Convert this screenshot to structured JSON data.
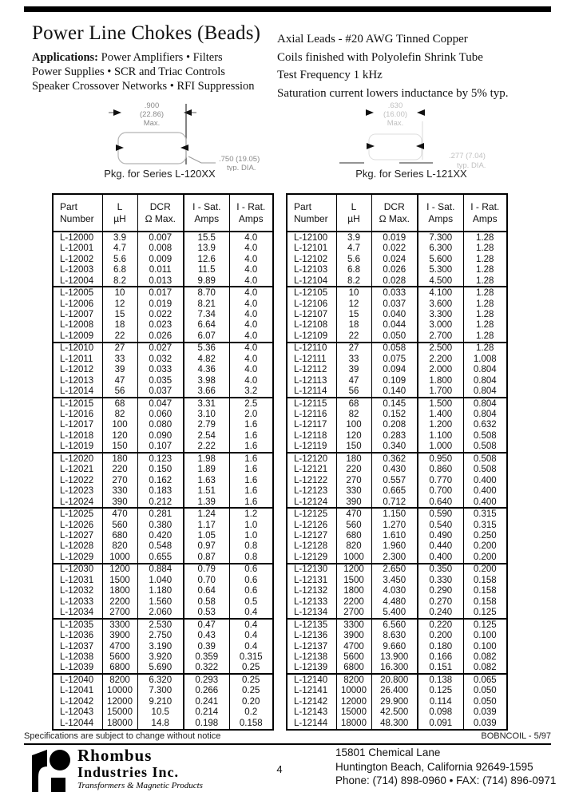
{
  "header": {
    "title": "Power Line Chokes (Beads)",
    "applications_label": "Applications:",
    "applications_line1": "Power Amplifiers • Filters",
    "applications_line2": "Power Supplies • SCR and Triac Controls",
    "applications_line3": "Speaker Crossover Networks • RFI Suppression",
    "spec1": "Axial Leads - #20 AWG Tinned Copper",
    "spec2": "Coils finished with Polyolefin Shrink Tube",
    "spec3": "Test Frequency 1 kHz",
    "spec4": "Saturation current lowers inductance by 5% typ."
  },
  "diagrams": {
    "left": {
      "dim_top_1": ".900",
      "dim_top_2": "(22.86)",
      "dim_top_3": "Max.",
      "dim_side_1": ".750  (19.05)",
      "dim_side_2": "typ. DIA.",
      "caption": "Pkg. for Series L-120XX"
    },
    "right": {
      "dim_top_1": ".630",
      "dim_top_2": "(16.00)",
      "dim_top_3": "Max.",
      "dim_side_1": ".277  (7.04)",
      "dim_side_2": "typ. DIA.",
      "caption": "Pkg. for Series L-121XX"
    }
  },
  "tables": {
    "headers": [
      [
        "Part",
        "Number"
      ],
      [
        "L",
        "µH"
      ],
      [
        "DCR",
        "Ω Max."
      ],
      [
        "I - Sat.",
        "Amps"
      ],
      [
        "I - Rat.",
        "Amps"
      ]
    ],
    "left_rows": [
      [
        "L-12000",
        "3.9",
        "0.007",
        "15.5",
        "4.0"
      ],
      [
        "L-12001",
        "4.7",
        "0.008",
        "13.9",
        "4.0"
      ],
      [
        "L-12002",
        "5.6",
        "0.009",
        "12.6",
        "4.0"
      ],
      [
        "L-12003",
        "6.8",
        "0.011",
        "11.5",
        "4.0"
      ],
      [
        "L-12004",
        "8.2",
        "0.013",
        "9.89",
        "4.0"
      ],
      [
        "L-12005",
        "10",
        "0.017",
        "8.70",
        "4.0"
      ],
      [
        "L-12006",
        "12",
        "0.019",
        "8.21",
        "4.0"
      ],
      [
        "L-12007",
        "15",
        "0.022",
        "7.34",
        "4.0"
      ],
      [
        "L-12008",
        "18",
        "0.023",
        "6.64",
        "4.0"
      ],
      [
        "L-12009",
        "22",
        "0.026",
        "6.07",
        "4.0"
      ],
      [
        "L-12010",
        "27",
        "0.027",
        "5.36",
        "4.0"
      ],
      [
        "L-12011",
        "33",
        "0.032",
        "4.82",
        "4.0"
      ],
      [
        "L-12012",
        "39",
        "0.033",
        "4.36",
        "4.0"
      ],
      [
        "L-12013",
        "47",
        "0.035",
        "3.98",
        "4.0"
      ],
      [
        "L-12014",
        "56",
        "0.037",
        "3.66",
        "3.2"
      ],
      [
        "L-12015",
        "68",
        "0.047",
        "3.31",
        "2.5"
      ],
      [
        "L-12016",
        "82",
        "0.060",
        "3.10",
        "2.0"
      ],
      [
        "L-12017",
        "100",
        "0.080",
        "2.79",
        "1.6"
      ],
      [
        "L-12018",
        "120",
        "0.090",
        "2.54",
        "1.6"
      ],
      [
        "L-12019",
        "150",
        "0.107",
        "2.22",
        "1.6"
      ],
      [
        "L-12020",
        "180",
        "0.123",
        "1.98",
        "1.6"
      ],
      [
        "L-12021",
        "220",
        "0.150",
        "1.89",
        "1.6"
      ],
      [
        "L-12022",
        "270",
        "0.162",
        "1.63",
        "1.6"
      ],
      [
        "L-12023",
        "330",
        "0.183",
        "1.51",
        "1.6"
      ],
      [
        "L-12024",
        "390",
        "0.212",
        "1.39",
        "1.6"
      ],
      [
        "L-12025",
        "470",
        "0.281",
        "1.24",
        "1.2"
      ],
      [
        "L-12026",
        "560",
        "0.380",
        "1.17",
        "1.0"
      ],
      [
        "L-12027",
        "680",
        "0.420",
        "1.05",
        "1.0"
      ],
      [
        "L-12028",
        "820",
        "0.548",
        "0.97",
        "0.8"
      ],
      [
        "L-12029",
        "1000",
        "0.655",
        "0.87",
        "0.8"
      ],
      [
        "L-12030",
        "1200",
        "0.884",
        "0.79",
        "0.6"
      ],
      [
        "L-12031",
        "1500",
        "1.040",
        "0.70",
        "0.6"
      ],
      [
        "L-12032",
        "1800",
        "1.180",
        "0.64",
        "0.6"
      ],
      [
        "L-12033",
        "2200",
        "1.560",
        "0.58",
        "0.5"
      ],
      [
        "L-12034",
        "2700",
        "2.060",
        "0.53",
        "0.4"
      ],
      [
        "L-12035",
        "3300",
        "2.530",
        "0.47",
        "0.4"
      ],
      [
        "L-12036",
        "3900",
        "2.750",
        "0.43",
        "0.4"
      ],
      [
        "L-12037",
        "4700",
        "3.190",
        "0.39",
        "0.4"
      ],
      [
        "L-12038",
        "5600",
        "3.920",
        "0.359",
        "0.315"
      ],
      [
        "L-12039",
        "6800",
        "5.690",
        "0.322",
        "0.25"
      ],
      [
        "L-12040",
        "8200",
        "6.320",
        "0.293",
        "0.25"
      ],
      [
        "L-12041",
        "10000",
        "7.300",
        "0.266",
        "0.25"
      ],
      [
        "L-12042",
        "12000",
        "9.210",
        "0.241",
        "0.20"
      ],
      [
        "L-12043",
        "15000",
        "10.5",
        "0.214",
        "0.2"
      ],
      [
        "L-12044",
        "18000",
        "14.8",
        "0.198",
        "0.158"
      ]
    ],
    "right_rows": [
      [
        "L-12100",
        "3.9",
        "0.019",
        "7.300",
        "1.28"
      ],
      [
        "L-12101",
        "4.7",
        "0.022",
        "6.300",
        "1.28"
      ],
      [
        "L-12102",
        "5.6",
        "0.024",
        "5.600",
        "1.28"
      ],
      [
        "L-12103",
        "6.8",
        "0.026",
        "5.300",
        "1.28"
      ],
      [
        "L-12104",
        "8.2",
        "0.028",
        "4.500",
        "1.28"
      ],
      [
        "L-12105",
        "10",
        "0.033",
        "4.100",
        "1.28"
      ],
      [
        "L-12106",
        "12",
        "0.037",
        "3.600",
        "1.28"
      ],
      [
        "L-12107",
        "15",
        "0.040",
        "3.300",
        "1.28"
      ],
      [
        "L-12108",
        "18",
        "0.044",
        "3.000",
        "1.28"
      ],
      [
        "L-12109",
        "22",
        "0.050",
        "2.700",
        "1.28"
      ],
      [
        "L-12110",
        "27",
        "0.058",
        "2.500",
        "1.28"
      ],
      [
        "L-12111",
        "33",
        "0.075",
        "2.200",
        "1.008"
      ],
      [
        "L-12112",
        "39",
        "0.094",
        "2.000",
        "0.804"
      ],
      [
        "L-12113",
        "47",
        "0.109",
        "1.800",
        "0.804"
      ],
      [
        "L-12114",
        "56",
        "0.140",
        "1.700",
        "0.804"
      ],
      [
        "L-12115",
        "68",
        "0.145",
        "1.500",
        "0.804"
      ],
      [
        "L-12116",
        "82",
        "0.152",
        "1.400",
        "0.804"
      ],
      [
        "L-12117",
        "100",
        "0.208",
        "1.200",
        "0.632"
      ],
      [
        "L-12118",
        "120",
        "0.283",
        "1.100",
        "0.508"
      ],
      [
        "L-12119",
        "150",
        "0.340",
        "1.000",
        "0.508"
      ],
      [
        "L-12120",
        "180",
        "0.362",
        "0.950",
        "0.508"
      ],
      [
        "L-12121",
        "220",
        "0.430",
        "0.860",
        "0.508"
      ],
      [
        "L-12122",
        "270",
        "0.557",
        "0.770",
        "0.400"
      ],
      [
        "L-12123",
        "330",
        "0.665",
        "0.700",
        "0.400"
      ],
      [
        "L-12124",
        "390",
        "0.712",
        "0.640",
        "0.400"
      ],
      [
        "L-12125",
        "470",
        "1.150",
        "0.590",
        "0.315"
      ],
      [
        "L-12126",
        "560",
        "1.270",
        "0.540",
        "0.315"
      ],
      [
        "L-12127",
        "680",
        "1.610",
        "0.490",
        "0.250"
      ],
      [
        "L-12128",
        "820",
        "1.960",
        "0.440",
        "0.200"
      ],
      [
        "L-12129",
        "1000",
        "2.300",
        "0.400",
        "0.200"
      ],
      [
        "L-12130",
        "1200",
        "2.650",
        "0.350",
        "0.200"
      ],
      [
        "L-12131",
        "1500",
        "3.450",
        "0.330",
        "0.158"
      ],
      [
        "L-12132",
        "1800",
        "4.030",
        "0.290",
        "0.158"
      ],
      [
        "L-12133",
        "2200",
        "4.480",
        "0.270",
        "0.158"
      ],
      [
        "L-12134",
        "2700",
        "5.400",
        "0.240",
        "0.125"
      ],
      [
        "L-12135",
        "3300",
        "6.560",
        "0.220",
        "0.125"
      ],
      [
        "L-12136",
        "3900",
        "8.630",
        "0.200",
        "0.100"
      ],
      [
        "L-12137",
        "4700",
        "9.660",
        "0.180",
        "0.100"
      ],
      [
        "L-12138",
        "5600",
        "13.900",
        "0.166",
        "0.082"
      ],
      [
        "L-12139",
        "6800",
        "16.300",
        "0.151",
        "0.082"
      ],
      [
        "L-12140",
        "8200",
        "20.800",
        "0.138",
        "0.065"
      ],
      [
        "L-12141",
        "10000",
        "26.400",
        "0.125",
        "0.050"
      ],
      [
        "L-12142",
        "12000",
        "29.900",
        "0.114",
        "0.050"
      ],
      [
        "L-12143",
        "15000",
        "42.500",
        "0.098",
        "0.039"
      ],
      [
        "L-12144",
        "18000",
        "48.300",
        "0.091",
        "0.039"
      ]
    ]
  },
  "footer": {
    "disclaimer": "Specifications are subject to change without notice",
    "doc_code": "BOBNCOIL - 5/97",
    "company_line1": "Rhombus",
    "company_line2": "Industries Inc.",
    "company_line3": "Transformers & Magnetic Products",
    "page_number": "4",
    "address_line1": "15801 Chemical Lane",
    "address_line2": "Huntington Beach, California 92649-1595",
    "address_line3": "Phone:  (714) 898-0960  •  FAX:  (714) 896-0971"
  }
}
